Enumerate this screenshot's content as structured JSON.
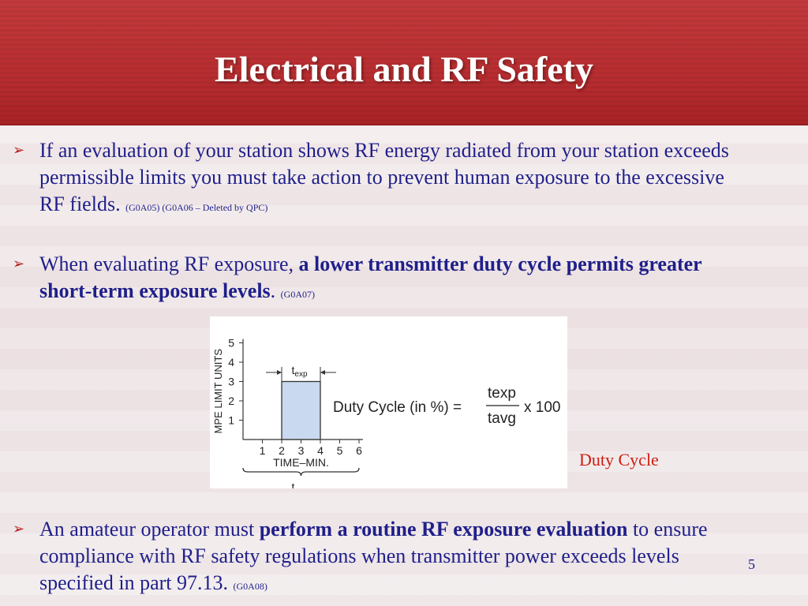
{
  "slide": {
    "title": "Electrical and RF Safety",
    "page_number": "5"
  },
  "bullets": [
    {
      "parts": [
        {
          "text": "If an evaluation of your station shows RF energy radiated from your station exceeds permissible limits you must take action to prevent human exposure to the excessive RF fields. ",
          "bold": false
        },
        {
          "text": "(G0A05) (G0A06 – Deleted by QPC)",
          "ref": true
        }
      ]
    },
    {
      "parts": [
        {
          "text": "When evaluating RF exposure, ",
          "bold": false
        },
        {
          "text": "a lower transmitter duty cycle permits greater short-term exposure levels",
          "bold": true
        },
        {
          "text": ". ",
          "bold": false
        },
        {
          "text": "(G0A07)",
          "ref": true
        }
      ]
    },
    {
      "parts": [
        {
          "text": "An amateur operator must ",
          "bold": false
        },
        {
          "text": "perform a routine RF exposure evaluation",
          "bold": true
        },
        {
          "text": " to ensure compliance with RF safety regulations when transmitter power exceeds levels specified in part 97.13. ",
          "bold": false
        },
        {
          "text": "(G0A08)",
          "ref": true
        }
      ]
    }
  ],
  "figure": {
    "y_axis_label": "MPE LIMIT UNITS",
    "x_axis_label": "TIME–MIN.",
    "y_ticks": [
      "1",
      "2",
      "3",
      "4",
      "5"
    ],
    "x_ticks": [
      "1",
      "2",
      "3",
      "4",
      "5",
      "6"
    ],
    "pulse": {
      "start": 2,
      "end": 4,
      "level": 3
    },
    "t_exp": {
      "base": "t",
      "sub": "exp"
    },
    "t_avg": {
      "base": "t",
      "sub": "avg"
    },
    "formula": {
      "lhs": "Duty Cycle (in %) =",
      "numerator": "texp",
      "denominator": "tavg",
      "rhs": "x 100"
    },
    "colors": {
      "pulse_fill": "#c9d9ef",
      "pulse_stroke": "#333333"
    }
  },
  "caption": "Duty Cycle",
  "colors": {
    "header": "#b82d30",
    "title_text": "#ffffff",
    "body_text": "#1f1f8a",
    "bullet_arrow": "#b51d1d",
    "caption": "#cc1e12"
  }
}
